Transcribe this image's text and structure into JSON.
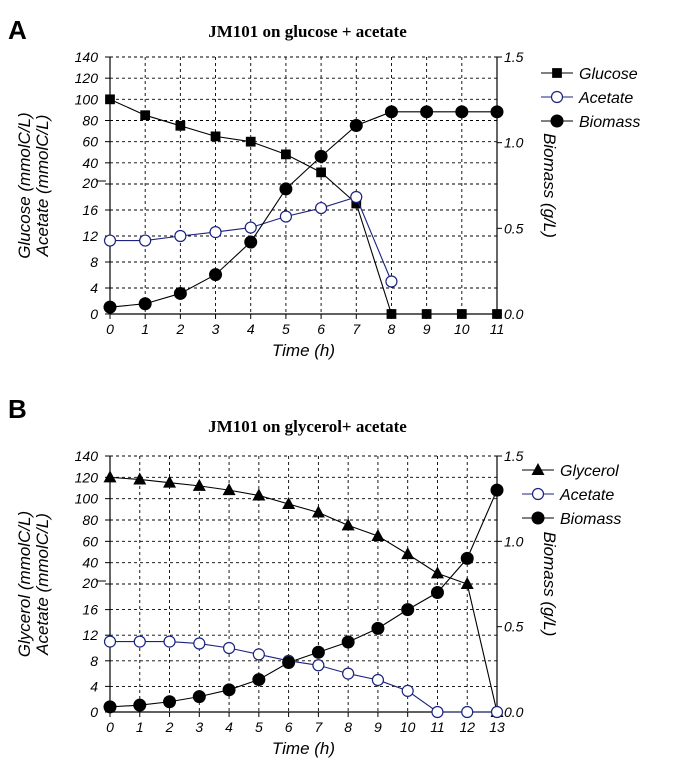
{
  "chart_data": [
    {
      "type": "line",
      "panel": "A",
      "title": "JM101 on glucose + acetate",
      "xlabel": "Time (h)",
      "ylabel_line1": "Glucose (mmolC/L)",
      "ylabel_line2": "Acetate (mmolC/L)",
      "y2label": "Biomass (g/L)",
      "x": [
        0,
        1,
        2,
        3,
        4,
        5,
        6,
        7,
        8,
        9,
        10,
        11
      ],
      "xlim": [
        0,
        11
      ],
      "y_axis_lower": {
        "ticks": [
          0,
          4,
          8,
          12,
          16,
          20
        ],
        "range": [
          0,
          20
        ]
      },
      "y_axis_upper": {
        "ticks": [
          20,
          40,
          60,
          80,
          100,
          120,
          140
        ],
        "range": [
          20,
          140
        ]
      },
      "y2_ticks": [
        "0.0",
        "0.5",
        "1.0",
        "1.5"
      ],
      "y2lim": [
        0,
        1.5
      ],
      "grid": true,
      "legend_position": "right",
      "series": [
        {
          "name": "Glucose",
          "axis": "left",
          "marker": "square",
          "color": "#000000",
          "x": [
            0,
            1,
            2,
            3,
            4,
            5,
            6,
            7,
            8,
            9,
            10,
            11
          ],
          "values": [
            100,
            85,
            75,
            65,
            60,
            48,
            31,
            17,
            0,
            0,
            0,
            0
          ]
        },
        {
          "name": "Acetate",
          "axis": "left",
          "marker": "circle-open",
          "color": "#1a237e",
          "x": [
            0,
            1,
            2,
            3,
            4,
            5,
            6,
            7,
            8
          ],
          "values": [
            11.3,
            11.3,
            12,
            12.6,
            13.3,
            15,
            16.3,
            18,
            5
          ]
        },
        {
          "name": "Biomass",
          "axis": "right",
          "marker": "circle",
          "color": "#000000",
          "x": [
            0,
            1,
            2,
            3,
            4,
            5,
            6,
            7,
            8,
            9,
            10,
            11
          ],
          "values": [
            0.04,
            0.06,
            0.12,
            0.23,
            0.42,
            0.73,
            0.92,
            1.1,
            1.18,
            1.18,
            1.18,
            1.18
          ]
        }
      ]
    },
    {
      "type": "line",
      "panel": "B",
      "title": "JM101 on glycerol+ acetate",
      "xlabel": "Time (h)",
      "ylabel_line1": "Glycerol (mmolC/L)",
      "ylabel_line2": "Acetate (mmolC/L)",
      "y2label": "Biomass (g/L)",
      "x": [
        0,
        1,
        2,
        3,
        4,
        5,
        6,
        7,
        8,
        9,
        10,
        11,
        12,
        13
      ],
      "xlim": [
        0,
        13
      ],
      "y_axis_lower": {
        "ticks": [
          0,
          4,
          8,
          12,
          16,
          20
        ],
        "range": [
          0,
          20
        ]
      },
      "y_axis_upper": {
        "ticks": [
          20,
          40,
          60,
          80,
          100,
          120,
          140
        ],
        "range": [
          20,
          140
        ]
      },
      "y2_ticks": [
        "0.0",
        "0.5",
        "1.0",
        "1.5"
      ],
      "y2lim": [
        0,
        1.5
      ],
      "grid": true,
      "legend_position": "right",
      "series": [
        {
          "name": "Glycerol",
          "axis": "left",
          "marker": "triangle",
          "color": "#000000",
          "x": [
            0,
            1,
            2,
            3,
            4,
            5,
            6,
            7,
            8,
            9,
            10,
            11,
            12,
            13
          ],
          "values": [
            120,
            118,
            115,
            112,
            108,
            103,
            95,
            87,
            75,
            65,
            48,
            30,
            20,
            0
          ]
        },
        {
          "name": "Acetate",
          "axis": "left",
          "marker": "circle-open",
          "color": "#1a237e",
          "x": [
            0,
            1,
            2,
            3,
            4,
            5,
            6,
            7,
            8,
            9,
            10,
            11,
            12,
            13
          ],
          "values": [
            11,
            11,
            11,
            10.7,
            10,
            9,
            8,
            7.3,
            6,
            5,
            3.3,
            0,
            0,
            0
          ]
        },
        {
          "name": "Biomass",
          "axis": "right",
          "marker": "circle",
          "color": "#000000",
          "x": [
            0,
            1,
            2,
            3,
            4,
            5,
            6,
            7,
            8,
            9,
            10,
            11,
            12,
            13
          ],
          "values": [
            0.03,
            0.04,
            0.06,
            0.09,
            0.13,
            0.19,
            0.29,
            0.35,
            0.41,
            0.49,
            0.6,
            0.7,
            0.9,
            1.3
          ]
        }
      ]
    }
  ]
}
